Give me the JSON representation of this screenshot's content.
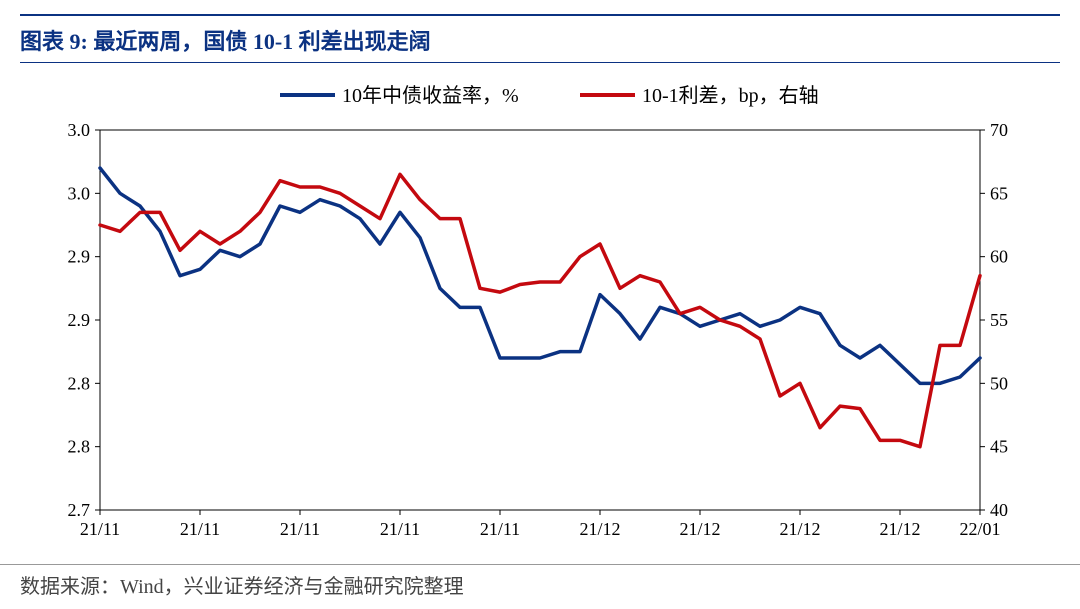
{
  "title_prefix": "图表 9:",
  "title_text": "最近两周，国债 10-1 利差出现走阔",
  "source_text": "数据来源：Wind，兴业证券经济与金融研究院整理",
  "chart": {
    "type": "line-dual-axis",
    "background_color": "#ffffff",
    "plot_border_color": "#000000",
    "plot_border_width": 1,
    "y_left": {
      "min": 2.7,
      "max": 3.0,
      "ticks": [
        2.7,
        2.8,
        2.8,
        2.9,
        2.9,
        3.0,
        3.0
      ],
      "tick_labels": [
        "2.7",
        "2.8",
        "2.8",
        "2.9",
        "2.9",
        "3.0",
        "3.0"
      ],
      "tick_values": [
        2.7,
        2.75,
        2.8,
        2.85,
        2.9,
        2.95,
        3.0
      ],
      "color": "#000000"
    },
    "y_right": {
      "min": 40,
      "max": 70,
      "ticks": [
        40,
        45,
        50,
        55,
        60,
        65,
        70
      ],
      "tick_labels": [
        "40",
        "45",
        "50",
        "55",
        "60",
        "65",
        "70"
      ],
      "color": "#000000"
    },
    "x": {
      "count": 45,
      "tick_positions": [
        0,
        5,
        10,
        15,
        20,
        25,
        30,
        35,
        40
      ],
      "tick_labels": [
        "21/11",
        "21/11",
        "21/11",
        "21/11",
        "21/11",
        "21/12",
        "21/12",
        "21/12",
        "21/12",
        "22/01"
      ],
      "tick_positions_full": [
        0,
        5,
        10,
        15,
        20,
        25,
        30,
        35,
        40,
        44
      ]
    },
    "series": [
      {
        "name": "10年中债收益率，%",
        "axis": "left",
        "color": "#0b3282",
        "line_width": 3.5,
        "data": [
          2.97,
          2.95,
          2.94,
          2.92,
          2.885,
          2.89,
          2.905,
          2.9,
          2.91,
          2.94,
          2.935,
          2.945,
          2.94,
          2.93,
          2.91,
          2.935,
          2.915,
          2.875,
          2.86,
          2.86,
          2.82,
          2.82,
          2.82,
          2.825,
          2.825,
          2.87,
          2.855,
          2.835,
          2.86,
          2.855,
          2.845,
          2.85,
          2.855,
          2.845,
          2.85,
          2.86,
          2.855,
          2.83,
          2.82,
          2.83,
          2.815,
          2.8,
          2.8,
          2.805,
          2.82
        ]
      },
      {
        "name": "10-1利差，bp，右轴",
        "axis": "right",
        "color": "#c4090f",
        "line_width": 3.5,
        "data": [
          62.5,
          62.0,
          63.5,
          63.5,
          60.5,
          62.0,
          61.0,
          62.0,
          63.5,
          66.0,
          65.5,
          65.5,
          65.0,
          64.0,
          63.0,
          66.5,
          64.5,
          63.0,
          63.0,
          57.5,
          57.2,
          57.8,
          58.0,
          58.0,
          60.0,
          61.0,
          57.5,
          58.5,
          58.0,
          55.5,
          56.0,
          55.0,
          54.5,
          53.5,
          49.0,
          50.0,
          46.5,
          48.2,
          48.0,
          45.5,
          45.5,
          45.0,
          53.0,
          53.0,
          58.5
        ]
      }
    ],
    "legend": {
      "items": [
        {
          "label": "10年中债收益率，%",
          "color": "#0b3282"
        },
        {
          "label": "10-1利差，bp，右轴",
          "color": "#c4090f"
        }
      ]
    }
  }
}
